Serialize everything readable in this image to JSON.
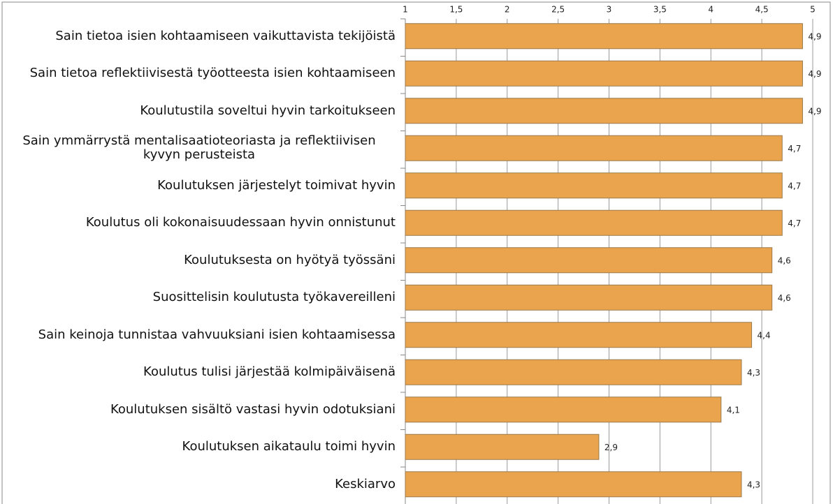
{
  "chart_data": {
    "type": "bar",
    "orientation": "horizontal",
    "categories": [
      "Sain tietoa isien kohtaamiseen vaikuttavista tekijöistä",
      "Sain tietoa reflektiivisestä työotteesta isien kohtaamiseen",
      "Koulutustila soveltui hyvin tarkoitukseen",
      "Sain ymmärrystä mentalisaatioteoriasta ja reflektiivisen kyvyn perusteista",
      "Koulutuksen järjestelyt toimivat hyvin",
      "Koulutus oli kokonaisuudessaan hyvin onnistunut",
      "Koulutuksesta on hyötyä työssäni",
      "Suosittelisin koulutusta työkavereilleni",
      "Sain keinoja tunnistaa vahvuuksiani isien kohtaamisessa",
      "Koulutus tulisi järjestää kolmipäiväisenä",
      "Koulutuksen sisältö vastasi hyvin odotuksiani",
      "Koulutuksen aikataulu toimi hyvin",
      "Keskiarvo"
    ],
    "values": [
      4.9,
      4.9,
      4.9,
      4.7,
      4.7,
      4.7,
      4.6,
      4.6,
      4.4,
      4.3,
      4.1,
      2.9,
      4.3
    ],
    "value_labels": [
      "4,9",
      "4,9",
      "4,9",
      "4,7",
      "4,7",
      "4,7",
      "4,6",
      "4,6",
      "4,4",
      "4,3",
      "4,1",
      "2,9",
      "4,3"
    ],
    "color": "#e9a44d",
    "xlim": [
      1,
      5
    ],
    "xticks": [
      1,
      {
        "value": 1.5,
        "label": "1,5"
      },
      2,
      {
        "value": 2.5,
        "label": "2,5"
      },
      3,
      {
        "value": 3.5,
        "label": "3,5"
      },
      4,
      {
        "value": 4.5,
        "label": "4,5"
      },
      5
    ],
    "grid": true
  }
}
